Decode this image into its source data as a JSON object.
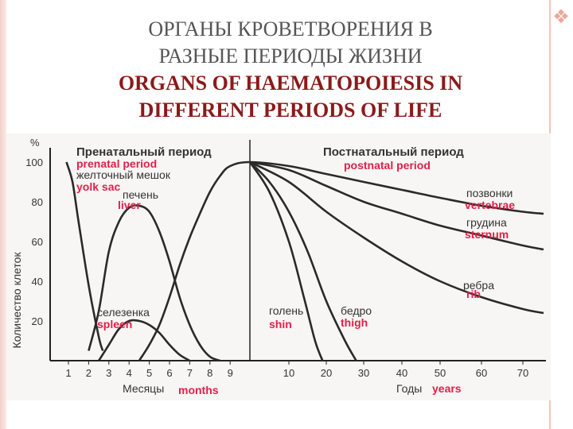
{
  "slide": {
    "title_ru_line1": "ОРГАНЫ КРОВЕТВОРЕНИЯ В",
    "title_ru_line2": "РАЗНЫЕ ПЕРИОДЫ ЖИЗНИ",
    "title_en_line1": "ORGANS OF HAEMATOPOIESIS IN",
    "title_en_line2": "DIFFERENT PERIODS OF LIFE",
    "colors": {
      "title_en": "#8b1a1a",
      "annotation_red": "#e0204a",
      "curve": "#2a2a2a",
      "border": "#f1c6bd"
    }
  },
  "chart_data": {
    "type": "line",
    "ylabel": "Количество клеток",
    "y_unit": "%",
    "ylim": [
      0,
      100
    ],
    "yticks": [
      20,
      40,
      60,
      80,
      100
    ],
    "y_unit_label": "%",
    "grid": false,
    "periods": [
      {
        "label_ru": "Пренатальный период",
        "label_en": "prenatal period",
        "x_axis_label_ru": "Месяцы",
        "x_axis_label_en": "months",
        "x_ticks": [
          "1",
          "2",
          "3",
          "4",
          "5",
          "6",
          "7",
          "8",
          "9"
        ]
      },
      {
        "label_ru": "Постнатальный период",
        "label_en": "postnatal period",
        "x_axis_label_ru": "Годы",
        "x_axis_label_en": "years",
        "x_ticks": [
          "10",
          "20",
          "30",
          "40",
          "50",
          "60",
          "70"
        ]
      }
    ],
    "series": [
      {
        "name": "желточный мешок",
        "name_en": "yolk sac",
        "points": [
          [
            "m",
            0.9,
            100
          ],
          [
            "m",
            1.2,
            90
          ],
          [
            "m",
            1.5,
            70
          ],
          [
            "m",
            2,
            38
          ],
          [
            "m",
            2.5,
            12
          ],
          [
            "m",
            2.7,
            5
          ]
        ]
      },
      {
        "name": "печень",
        "name_en": "liver",
        "points": [
          [
            "m",
            2,
            5
          ],
          [
            "m",
            2.5,
            25
          ],
          [
            "m",
            3,
            55
          ],
          [
            "m",
            3.5,
            70
          ],
          [
            "m",
            4,
            77
          ],
          [
            "m",
            4.5,
            78
          ],
          [
            "m",
            5,
            75
          ],
          [
            "m",
            5.5,
            65
          ],
          [
            "m",
            6,
            50
          ],
          [
            "m",
            6.5,
            32
          ],
          [
            "m",
            7,
            18
          ],
          [
            "m",
            7.5,
            8
          ],
          [
            "m",
            8,
            2
          ],
          [
            "m",
            8.5,
            0
          ]
        ]
      },
      {
        "name": "селезенка",
        "name_en": "spleen",
        "points": [
          [
            "m",
            2.5,
            0
          ],
          [
            "m",
            3,
            8
          ],
          [
            "m",
            3.5,
            16
          ],
          [
            "m",
            4,
            20
          ],
          [
            "m",
            4.5,
            20
          ],
          [
            "m",
            5,
            18
          ],
          [
            "m",
            5.5,
            14
          ],
          [
            "m",
            6,
            8
          ],
          [
            "m",
            6.5,
            3
          ],
          [
            "m",
            7,
            0
          ]
        ]
      },
      {
        "name": "позвонки",
        "name_en": "vertebrae",
        "points": [
          [
            "m",
            4.5,
            0
          ],
          [
            "m",
            5,
            8
          ],
          [
            "m",
            5.5,
            18
          ],
          [
            "m",
            6,
            32
          ],
          [
            "m",
            6.5,
            48
          ],
          [
            "m",
            7,
            62
          ],
          [
            "m",
            7.5,
            74
          ],
          [
            "m",
            8,
            85
          ],
          [
            "m",
            8.5,
            93
          ],
          [
            "m",
            9,
            98
          ],
          [
            "y",
            0,
            100
          ],
          [
            "y",
            10,
            98
          ],
          [
            "y",
            20,
            94
          ],
          [
            "y",
            30,
            90
          ],
          [
            "y",
            40,
            86
          ],
          [
            "y",
            50,
            82
          ],
          [
            "y",
            60,
            78
          ],
          [
            "y",
            70,
            75
          ],
          [
            "y",
            75,
            74
          ]
        ]
      },
      {
        "name": "грудина",
        "name_en": "sternum",
        "points": [
          [
            "y",
            0,
            100
          ],
          [
            "y",
            10,
            96
          ],
          [
            "y",
            20,
            88
          ],
          [
            "y",
            30,
            80
          ],
          [
            "y",
            40,
            74
          ],
          [
            "y",
            50,
            68
          ],
          [
            "y",
            60,
            63
          ],
          [
            "y",
            70,
            58
          ],
          [
            "y",
            75,
            56
          ]
        ]
      },
      {
        "name": "ребра",
        "name_en": "rib",
        "points": [
          [
            "y",
            0,
            100
          ],
          [
            "y",
            10,
            90
          ],
          [
            "y",
            20,
            75
          ],
          [
            "y",
            30,
            62
          ],
          [
            "y",
            40,
            50
          ],
          [
            "y",
            50,
            40
          ],
          [
            "y",
            60,
            32
          ],
          [
            "y",
            70,
            26
          ],
          [
            "y",
            75,
            24
          ]
        ]
      },
      {
        "name": "бедро",
        "name_en": "thigh",
        "points": [
          [
            "y",
            0,
            100
          ],
          [
            "y",
            5,
            90
          ],
          [
            "y",
            10,
            75
          ],
          [
            "y",
            15,
            55
          ],
          [
            "y",
            20,
            30
          ],
          [
            "y",
            25,
            10
          ],
          [
            "y",
            28,
            0
          ]
        ]
      },
      {
        "name": "голень",
        "name_en": "shin",
        "points": [
          [
            "y",
            0,
            100
          ],
          [
            "y",
            5,
            85
          ],
          [
            "y",
            10,
            60
          ],
          [
            "y",
            14,
            32
          ],
          [
            "y",
            17,
            10
          ],
          [
            "y",
            19,
            0
          ]
        ]
      }
    ]
  }
}
